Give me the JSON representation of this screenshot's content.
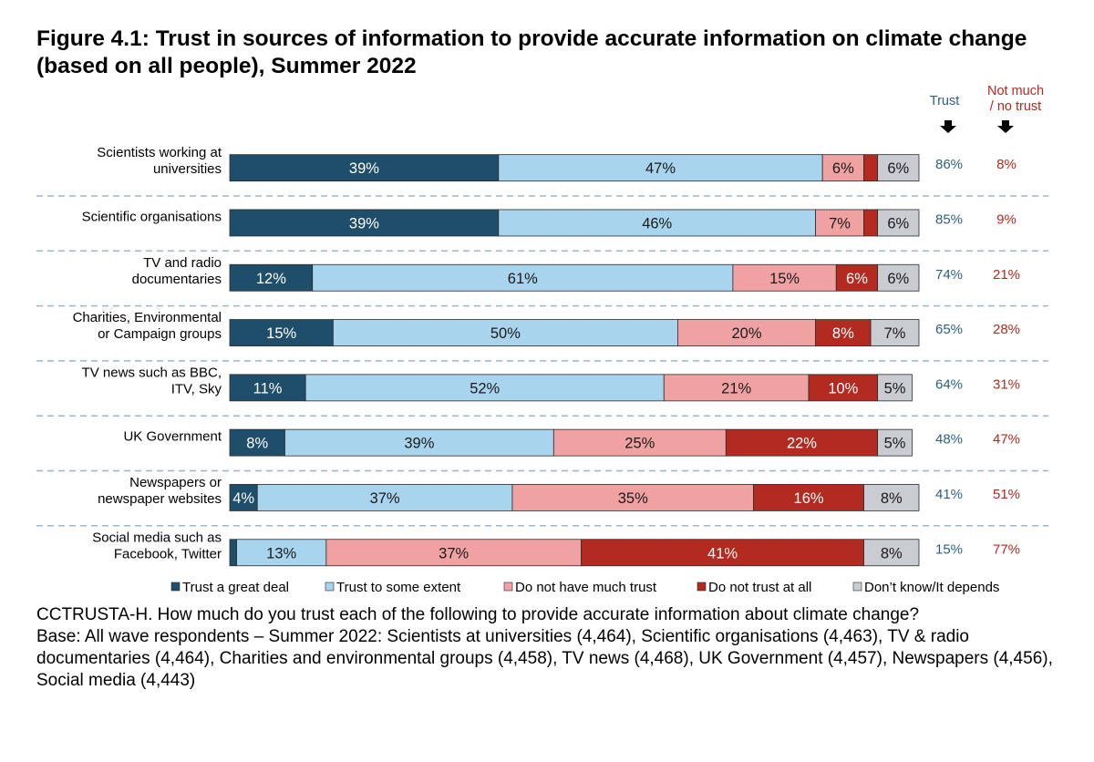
{
  "title": "Figure 4.1: Trust in sources of information to provide accurate information on climate change (based on all people), Summer 2022",
  "chart_data": {
    "type": "bar",
    "orientation": "horizontal",
    "stacked": true,
    "xlim": [
      0,
      100
    ],
    "categories": [
      [
        "Scientists working at",
        "universities"
      ],
      [
        "Scientific organisations"
      ],
      [
        "TV and radio",
        "documentaries"
      ],
      [
        "Charities, Environmental",
        "or Campaign groups"
      ],
      [
        "TV news such as BBC,",
        "ITV, Sky"
      ],
      [
        "UK Government"
      ],
      [
        "Newspapers or",
        "newspaper websites"
      ],
      [
        "Social media such as",
        "Facebook, Twitter"
      ]
    ],
    "series": [
      {
        "name": "Trust a great deal",
        "color": "#1f4e6b",
        "label_color": "#ffffff",
        "values": [
          39,
          39,
          12,
          15,
          11,
          8,
          4,
          1
        ],
        "labels": [
          "39%",
          "39%",
          "12%",
          "15%",
          "11%",
          "8%",
          "4%",
          ""
        ]
      },
      {
        "name": "Trust to some extent",
        "color": "#a9d4ee",
        "label_color": "#1a1a1a",
        "values": [
          47,
          46,
          61,
          50,
          52,
          39,
          37,
          13
        ],
        "labels": [
          "47%",
          "46%",
          "61%",
          "50%",
          "52%",
          "39%",
          "37%",
          "13%"
        ]
      },
      {
        "name": "Do not have much trust",
        "color": "#f0a2a2",
        "label_color": "#1a1a1a",
        "values": [
          6,
          7,
          15,
          20,
          21,
          25,
          35,
          37
        ],
        "labels": [
          "6%",
          "7%",
          "15%",
          "20%",
          "21%",
          "25%",
          "35%",
          "37%"
        ]
      },
      {
        "name": "Do not trust at all",
        "color": "#b22a20",
        "label_color": "#ffffff",
        "values": [
          2,
          2,
          6,
          8,
          10,
          22,
          16,
          41
        ],
        "labels": [
          "",
          "",
          "6%",
          "8%",
          "10%",
          "22%",
          "16%",
          "41%"
        ]
      },
      {
        "name": "Don’t know/It depends",
        "color": "#c9cdd1",
        "label_color": "#1a1a1a",
        "values": [
          6,
          6,
          6,
          7,
          5,
          5,
          8,
          8
        ],
        "labels": [
          "6%",
          "6%",
          "6%",
          "7%",
          "5%",
          "5%",
          "8%",
          "8%"
        ]
      }
    ],
    "summary_columns": [
      {
        "header": [
          "Trust"
        ],
        "color": "#2e5f80",
        "values": [
          "86%",
          "85%",
          "74%",
          "65%",
          "64%",
          "48%",
          "41%",
          "15%"
        ]
      },
      {
        "header": [
          "Not much",
          "/ no trust"
        ],
        "color": "#b22a20",
        "values": [
          "8%",
          "9%",
          "21%",
          "28%",
          "31%",
          "47%",
          "51%",
          "77%"
        ]
      }
    ],
    "legend_position": "bottom"
  },
  "notes": [
    "CCTRUSTA-H. How much do you trust each of the following to provide accurate information about climate change?",
    "Base: All wave respondents – Summer 2022: Scientists at universities (4,464), Scientific organisations (4,463), TV & radio documentaries (4,464), Charities and environmental groups (4,458), TV news (4,468), UK Government (4,457), Newspapers (4,456), Social media (4,443)"
  ]
}
